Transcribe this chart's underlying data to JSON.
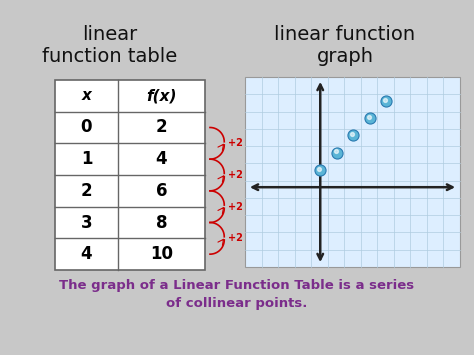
{
  "bg_color": "#c8c8c8",
  "title_left": "linear\nfunction table",
  "title_right": "linear function\ngraph",
  "title_color": "#111111",
  "table_x_vals": [
    0,
    1,
    2,
    3,
    4
  ],
  "table_fx_vals": [
    2,
    4,
    6,
    8,
    10
  ],
  "plus2_color": "#cc0000",
  "bottom_text": "The graph of a Linear Function Table is a series\nof collinear points.",
  "bottom_color": "#7b2d8b",
  "grid_bg": "#ddeeff",
  "dot_color": "#5ab4d6",
  "dot_edge_color": "#2a7ab0",
  "axis_color": "#222222",
  "table_line_color": "#666666",
  "grid_line_color": "#b0cce0"
}
